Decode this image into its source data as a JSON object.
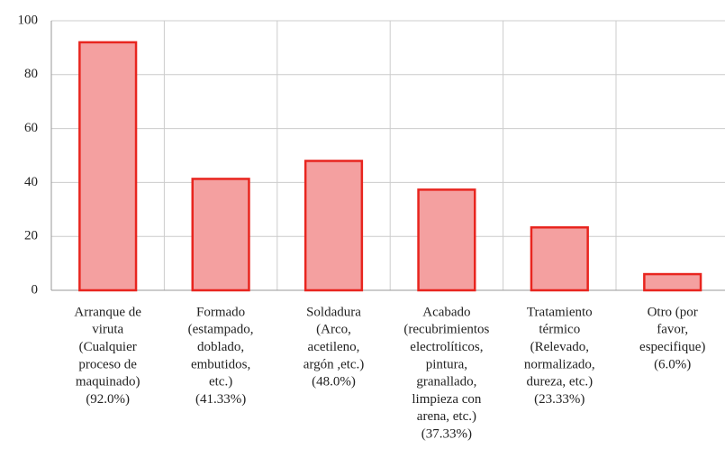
{
  "chart_data": {
    "type": "bar",
    "categories": [
      [
        "Arranque de",
        "viruta",
        "(Cualquier",
        "proceso de",
        "maquinado)",
        "(92.0%)"
      ],
      [
        "Formado",
        "(estampado,",
        "doblado,",
        "embutidos,",
        "etc.)",
        "(41.33%)"
      ],
      [
        "Soldadura",
        "(Arco,",
        "acetileno,",
        "argón ,etc.)",
        "(48.0%)"
      ],
      [
        "Acabado",
        "(recubrimientos",
        "electrolíticos,",
        "pintura,",
        "granallado,",
        "limpieza con",
        "arena, etc.)",
        "(37.33%)"
      ],
      [
        "Tratamiento",
        "térmico",
        "(Relevado,",
        "normalizado,",
        "dureza, etc.)",
        "(23.33%)"
      ],
      [
        "Otro (por",
        "favor,",
        "especifique)",
        "(6.0%)"
      ]
    ],
    "values": [
      92.0,
      41.33,
      48.0,
      37.33,
      23.33,
      6.0
    ],
    "color": "#f4a0a0",
    "edge_color": "#e8251f",
    "ylim": [
      0,
      100
    ],
    "yticks": [
      0,
      20,
      40,
      60,
      80,
      100
    ],
    "grid": true
  }
}
